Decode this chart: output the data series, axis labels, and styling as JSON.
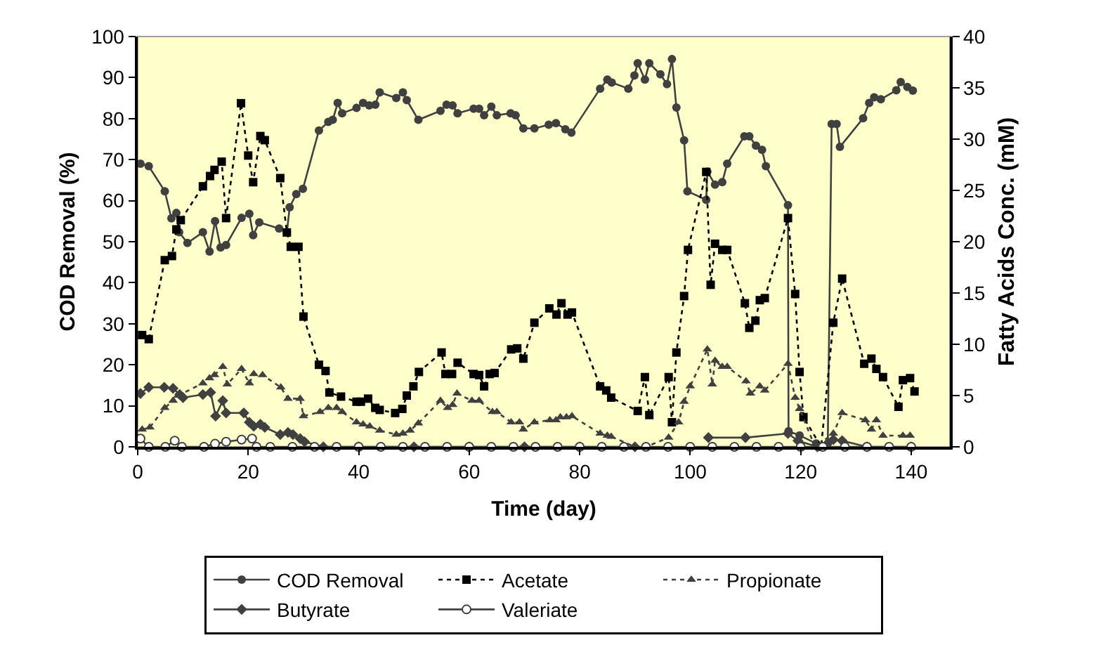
{
  "chart_data": {
    "type": "line",
    "xlabel": "Time (day)",
    "ylabel": "COD Removal (%)",
    "y2label": "Fatty Acids Conc. (mM)",
    "xlim": [
      0,
      147
    ],
    "xticks": [
      0,
      20,
      40,
      60,
      80,
      100,
      120,
      140
    ],
    "ylim": [
      0,
      100
    ],
    "yticks": [
      0,
      10,
      20,
      30,
      40,
      50,
      60,
      70,
      80,
      90,
      100
    ],
    "y2lim": [
      0,
      40
    ],
    "y2ticks": [
      0,
      5,
      10,
      15,
      20,
      25,
      30,
      35,
      40
    ],
    "grid": false,
    "legend": "bottom",
    "series": [
      {
        "name": "COD Removal",
        "color": "#404040",
        "marker": "circle",
        "line_style": "solid",
        "x": [
          0.5,
          2,
          4.9,
          6.1,
          7,
          7.5,
          9,
          11.8,
          13,
          14,
          15,
          16,
          18.8,
          20.2,
          20.9,
          22,
          25.6,
          27,
          27.5,
          28.7,
          29.9,
          32.8,
          34.5,
          35.3,
          36.2,
          37,
          39.6,
          40.8,
          41.9,
          43,
          43.8,
          46.8,
          48,
          48.7,
          50.8,
          54.8,
          55.9,
          57,
          57.9,
          60.8,
          61.8,
          62.7,
          64,
          65,
          67.5,
          68.4,
          69.8,
          71.8,
          74.4,
          75.7,
          77.4,
          78.5,
          83.7,
          85,
          85.8,
          88.8,
          89.9,
          90.5,
          91.8,
          92.6,
          94.6,
          95.8,
          96.7,
          97.5,
          98.9,
          99.5,
          102.9,
          103.1,
          104.5,
          105.8,
          106.7,
          109.8,
          110.7,
          111.9,
          113,
          113.7,
          117.7,
          117.8,
          119.8,
          122.8,
          124.9,
          125.6,
          126.5,
          127.1,
          131.3,
          132.4,
          133.3,
          134.5,
          137.3,
          138.1,
          139.3,
          140.3
        ],
        "values": [
          69,
          68.4,
          62.3,
          55.7,
          57,
          52.3,
          49.7,
          52.3,
          47.6,
          55,
          48.6,
          49.2,
          55.8,
          56.8,
          51.6,
          54.7,
          53.2,
          52.3,
          58.4,
          61.6,
          62.9,
          77.1,
          79.2,
          79.7,
          83.8,
          81.3,
          82.6,
          83.8,
          83.2,
          83.4,
          86.4,
          85,
          86.4,
          84.5,
          79.7,
          81.9,
          83.4,
          83.2,
          81.3,
          82.4,
          82.4,
          80.8,
          82.9,
          80.8,
          81.3,
          80.8,
          77.6,
          77.6,
          78.5,
          78.9,
          77.4,
          76.6,
          87.3,
          89.5,
          88.8,
          87.3,
          90.5,
          93.5,
          89.5,
          93.5,
          90.8,
          88.4,
          94.5,
          82.7,
          74.7,
          62.3,
          60.2,
          67.1,
          63.9,
          64.5,
          69,
          75.7,
          75.7,
          73.4,
          72.4,
          68.4,
          58.9,
          3.8,
          2.8,
          0.8,
          0.8,
          78.7,
          78.7,
          73.1,
          80.1,
          83.8,
          85.2,
          84.7,
          86.9,
          88.9,
          87.7,
          86.8
        ]
      },
      {
        "name": "Acetate",
        "color": "#000000",
        "marker": "square",
        "line_style": "dotted",
        "axis": "y2",
        "x": [
          0.8,
          2,
          4.9,
          6.2,
          7,
          7.8,
          11.8,
          13.1,
          13.9,
          15.2,
          16,
          18.7,
          20,
          20.9,
          22.2,
          23,
          25.8,
          27,
          27.7,
          29.1,
          30,
          32.8,
          34,
          34.7,
          36.8,
          39.6,
          40.4,
          41.7,
          43,
          43.8,
          46.6,
          47.9,
          48.7,
          49.9,
          50.9,
          55,
          55.7,
          56.9,
          57.9,
          60.8,
          61.8,
          62.7,
          63.7,
          64.6,
          67.6,
          68.7,
          69.8,
          71.8,
          74.5,
          75.8,
          76.7,
          77.8,
          78.6,
          83.7,
          84.8,
          85.7,
          90.5,
          91.8,
          92.6,
          96.1,
          96.7,
          97.5,
          98.9,
          99.6,
          102.9,
          103.7,
          104.5,
          105.8,
          106.7,
          109.9,
          110.7,
          111.8,
          112.6,
          113.5,
          117.7,
          119,
          119.8,
          120.5,
          123.7,
          125.9,
          127.5,
          131.5,
          132.8,
          133.7,
          134.9,
          137.7,
          138.5,
          139.8,
          140.6
        ],
        "values": [
          10.9,
          10.5,
          18.2,
          18.6,
          21.2,
          22.1,
          25.4,
          26.4,
          27,
          27.8,
          22.3,
          33.5,
          28.4,
          25.8,
          30.3,
          29.9,
          26.2,
          20.9,
          19.5,
          19.5,
          12.7,
          8,
          7.4,
          5.3,
          4.9,
          4.4,
          4.4,
          4.7,
          3.8,
          3.6,
          3.3,
          3.7,
          5,
          5.9,
          7.3,
          9.2,
          7.1,
          7.1,
          8.2,
          7.1,
          7,
          5.9,
          7.1,
          7.2,
          9.5,
          9.6,
          8.6,
          12.1,
          13.5,
          12.9,
          14,
          12.9,
          13.1,
          5.9,
          5.5,
          4.8,
          3.5,
          6.8,
          3.1,
          6.8,
          2.4,
          9.2,
          14.7,
          19.2,
          26.8,
          15.8,
          19.8,
          19.2,
          19.2,
          14,
          11.6,
          12.3,
          14.3,
          14.5,
          22.3,
          14.9,
          7.3,
          2.9,
          0,
          12.1,
          16.4,
          8.1,
          8.6,
          7.6,
          6.8,
          3.9,
          6.5,
          6.7,
          5.4
        ]
      },
      {
        "name": "Propionate",
        "color": "#404040",
        "marker": "triangle",
        "line_style": "dotted",
        "axis": "y2",
        "x": [
          0.8,
          2.2,
          4.9,
          6.4,
          7.3,
          11.8,
          13,
          13.9,
          15.4,
          16.2,
          18.8,
          20.2,
          21,
          22.6,
          25.9,
          27.2,
          29.4,
          30,
          33,
          34.5,
          36,
          37,
          39.6,
          40.8,
          42,
          43.8,
          46.8,
          48,
          49.3,
          50.8,
          54.8,
          56.1,
          57,
          57.8,
          60.5,
          61.8,
          64.2,
          65,
          67.6,
          69.1,
          69.8,
          71.8,
          74.6,
          75.7,
          76.5,
          77.6,
          78.6,
          83.7,
          85,
          85.7,
          90,
          92,
          96.1,
          97.9,
          98.9,
          100,
          103.1,
          104,
          104.5,
          105.8,
          106.7,
          110.1,
          110.9,
          112.6,
          113.5,
          117.7,
          119,
          119.8,
          122.6,
          125.9,
          127.5,
          131.7,
          132.8,
          133.7,
          134.9,
          138.5,
          139.8
        ],
        "values": [
          1.7,
          1.9,
          3.8,
          4.5,
          5,
          6.2,
          6.7,
          7,
          7.8,
          6.1,
          7.6,
          6.2,
          7.1,
          7,
          5.8,
          4.7,
          4.7,
          3,
          3.4,
          3.8,
          3.8,
          3.4,
          2.4,
          2.2,
          2,
          1.6,
          1.2,
          1.3,
          1.6,
          2.3,
          4.5,
          3.8,
          4.1,
          5.2,
          4.5,
          4.5,
          3.4,
          3.4,
          2.4,
          2.4,
          1.7,
          2.4,
          2.6,
          2.6,
          2.9,
          2.9,
          3,
          1.3,
          1.1,
          1,
          0,
          0,
          0.9,
          2.4,
          4.4,
          5.9,
          9.5,
          6.1,
          8.4,
          7.8,
          7.8,
          6.4,
          5.2,
          5.9,
          5.5,
          8.1,
          4.8,
          3.7,
          0,
          1.3,
          3.3,
          2.6,
          1.7,
          2.6,
          1.1,
          1.1,
          1.1
        ]
      },
      {
        "name": "Butyrate",
        "color": "#404040",
        "marker": "diamond",
        "line_style": "solid",
        "axis": "y2",
        "x": [
          0.5,
          2,
          4.8,
          6.4,
          7.6,
          8.2,
          11.8,
          13.2,
          14.1,
          15.4,
          16,
          19.2,
          20.2,
          21,
          22.2,
          23,
          25.8,
          27.2,
          28.1,
          29.4,
          30.2,
          33.6,
          40,
          50,
          60,
          70,
          80,
          90,
          96.1,
          103.3,
          110,
          117.7,
          119.5,
          123,
          125.9,
          127.5,
          132,
          140
        ],
        "values": [
          5.2,
          5.8,
          5.8,
          5.7,
          5.1,
          4.8,
          5.1,
          5.3,
          3,
          4.5,
          3.3,
          3.3,
          2.4,
          2,
          2.2,
          1.9,
          1.2,
          1.4,
          1.2,
          0.8,
          0.5,
          0,
          0,
          0,
          0,
          0,
          0,
          0,
          null,
          0.9,
          0.9,
          1.3,
          0.6,
          0,
          0.7,
          0.6,
          0,
          0
        ]
      },
      {
        "name": "Valeriate",
        "color": "#404040",
        "marker": "circle-open",
        "line_style": "solid",
        "axis": "y2",
        "x": [
          0.5,
          2,
          5,
          6.7,
          8,
          12,
          14,
          16,
          18.8,
          20.7,
          21.5,
          24,
          28,
          32,
          36,
          40,
          44,
          48,
          52,
          56,
          60,
          64,
          68,
          72,
          76,
          80,
          84,
          88,
          92,
          96,
          100,
          104,
          108,
          112,
          116,
          120,
          124,
          128,
          132,
          136,
          140
        ],
        "values": [
          0.8,
          0,
          0,
          0.6,
          0,
          0,
          0.3,
          0.5,
          0.7,
          0.8,
          0,
          0,
          0,
          0,
          0,
          0,
          0,
          0,
          0,
          0,
          0,
          0,
          0,
          0,
          0,
          0,
          0,
          0,
          0,
          0,
          0,
          0,
          0,
          0,
          0,
          0,
          0,
          0,
          0,
          0,
          0
        ]
      }
    ]
  }
}
